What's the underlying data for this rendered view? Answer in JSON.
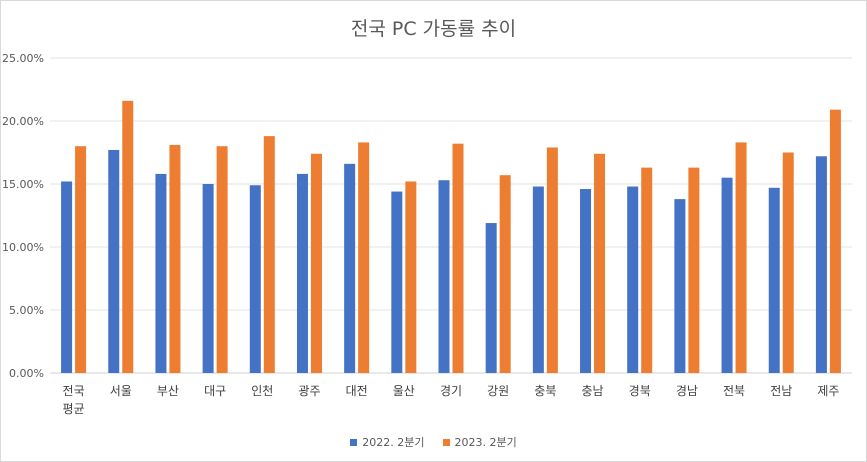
{
  "chart_data": {
    "type": "bar",
    "title": "전국 PC 가동률 추이",
    "xlabel": "",
    "ylabel": "",
    "ylim": [
      0,
      25
    ],
    "yticks": [
      "0.00%",
      "5.00%",
      "10.00%",
      "15.00%",
      "20.00%",
      "25.00%"
    ],
    "categories": [
      "전국 평균",
      "서울",
      "부산",
      "대구",
      "인천",
      "광주",
      "대전",
      "울산",
      "경기",
      "강원",
      "충북",
      "충남",
      "경북",
      "경남",
      "전북",
      "전남",
      "제주"
    ],
    "category_lines": [
      [
        "전국",
        "평균"
      ],
      [
        "서울"
      ],
      [
        "부산"
      ],
      [
        "대구"
      ],
      [
        "인천"
      ],
      [
        "광주"
      ],
      [
        "대전"
      ],
      [
        "울산"
      ],
      [
        "경기"
      ],
      [
        "강원"
      ],
      [
        "충북"
      ],
      [
        "충남"
      ],
      [
        "경북"
      ],
      [
        "경남"
      ],
      [
        "전북"
      ],
      [
        "전남"
      ],
      [
        "제주"
      ]
    ],
    "series": [
      {
        "name": "2022. 2분기",
        "color": "#4472C4",
        "values": [
          15.2,
          17.7,
          15.8,
          15.0,
          14.9,
          15.8,
          16.6,
          14.4,
          15.3,
          11.9,
          14.8,
          14.6,
          14.8,
          13.8,
          15.5,
          14.7,
          17.2
        ]
      },
      {
        "name": "2023. 2분기",
        "color": "#ED7D31",
        "values": [
          18.0,
          21.6,
          18.1,
          18.0,
          18.8,
          17.4,
          18.3,
          15.2,
          18.2,
          15.7,
          17.9,
          17.4,
          16.3,
          16.3,
          18.3,
          17.5,
          20.9
        ]
      }
    ],
    "legend_position": "bottom",
    "grid": true
  }
}
